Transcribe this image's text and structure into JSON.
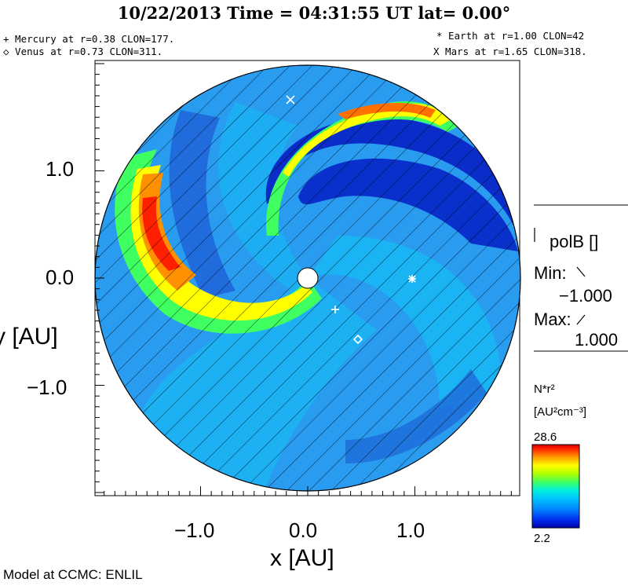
{
  "header": {
    "title": "10/22/2013 Time = 04:31:55 UT lat= 0.00°"
  },
  "planets": {
    "mercury": "+ Mercury at r=0.38 CLON=177.",
    "venus": "◇ Venus at r=0.73 CLON=311.",
    "earth": "* Earth at  r=1.00 CLON=42",
    "mars": "X Mars at r=1.65 CLON=318."
  },
  "axes": {
    "xlabel": "x [AU]",
    "ylabel": "y [AU]",
    "xticks": [
      "−1.0",
      "0.0",
      "1.0"
    ],
    "yticks": [
      "1.0",
      "0.0",
      "−1.0"
    ]
  },
  "sidepanel": {
    "polarity_label": "polB []",
    "min_label": "Min:",
    "min_value": "−1.000",
    "max_label": "Max:",
    "max_value": "1.000"
  },
  "colorbar": {
    "quantity": "N*r²",
    "units": "[AU²cm⁻³]",
    "max": "28.6",
    "min": "2.2",
    "colors": [
      "#0000a8",
      "#0022e0",
      "#0060ff",
      "#009cff",
      "#00d0ff",
      "#00ffd0",
      "#40ff60",
      "#a8ff00",
      "#ffff00",
      "#ffc000",
      "#ff8000",
      "#ff3000",
      "#e00000"
    ]
  },
  "footer": {
    "credit": "Model at CCMC: ENLIL"
  },
  "colors": {
    "background_field": "#2a9cf0",
    "quiet_wind": "#1cb4f4",
    "deep_blue": "#0a2cc8",
    "hatch": "#000000",
    "marker": "#ffffff"
  }
}
